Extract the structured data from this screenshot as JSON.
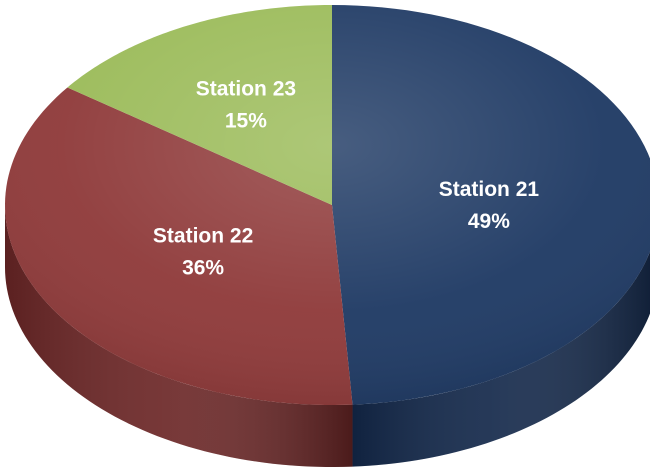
{
  "chart_data": {
    "type": "pie",
    "title": "",
    "slices": [
      {
        "label": "Station 21",
        "value": 49,
        "value_label": "49%",
        "color": "#1f3a64",
        "side_color": "#13284a"
      },
      {
        "label": "Station 22",
        "value": 36,
        "value_label": "36%",
        "color": "#8f3a3a",
        "side_color": "#6b2626"
      },
      {
        "label": "Station 23",
        "value": 15,
        "value_label": "15%",
        "color": "#9bbb59",
        "side_color": "#6e8a3a"
      }
    ]
  }
}
